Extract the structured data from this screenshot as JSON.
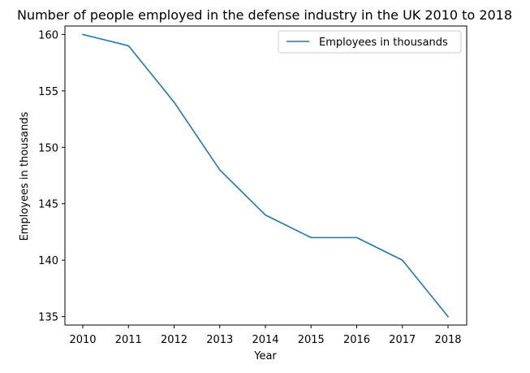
{
  "chart_data": {
    "type": "line",
    "title": "Number of people employed in the defense industry in the UK 2010 to 2018",
    "xlabel": "Year",
    "ylabel": "Employees in thousands",
    "x": [
      "2010",
      "2011",
      "2012",
      "2013",
      "2014",
      "2015",
      "2016",
      "2017",
      "2018"
    ],
    "series": [
      {
        "name": "Employees in thousands",
        "values": [
          160,
          159,
          154,
          148,
          144,
          142,
          142,
          140,
          135
        ],
        "color": "#1f77b4"
      }
    ],
    "yticks": [
      135,
      140,
      145,
      150,
      155,
      160
    ],
    "ylim": [
      134.25,
      160.75
    ],
    "grid": false,
    "legend_position": "upper right"
  }
}
